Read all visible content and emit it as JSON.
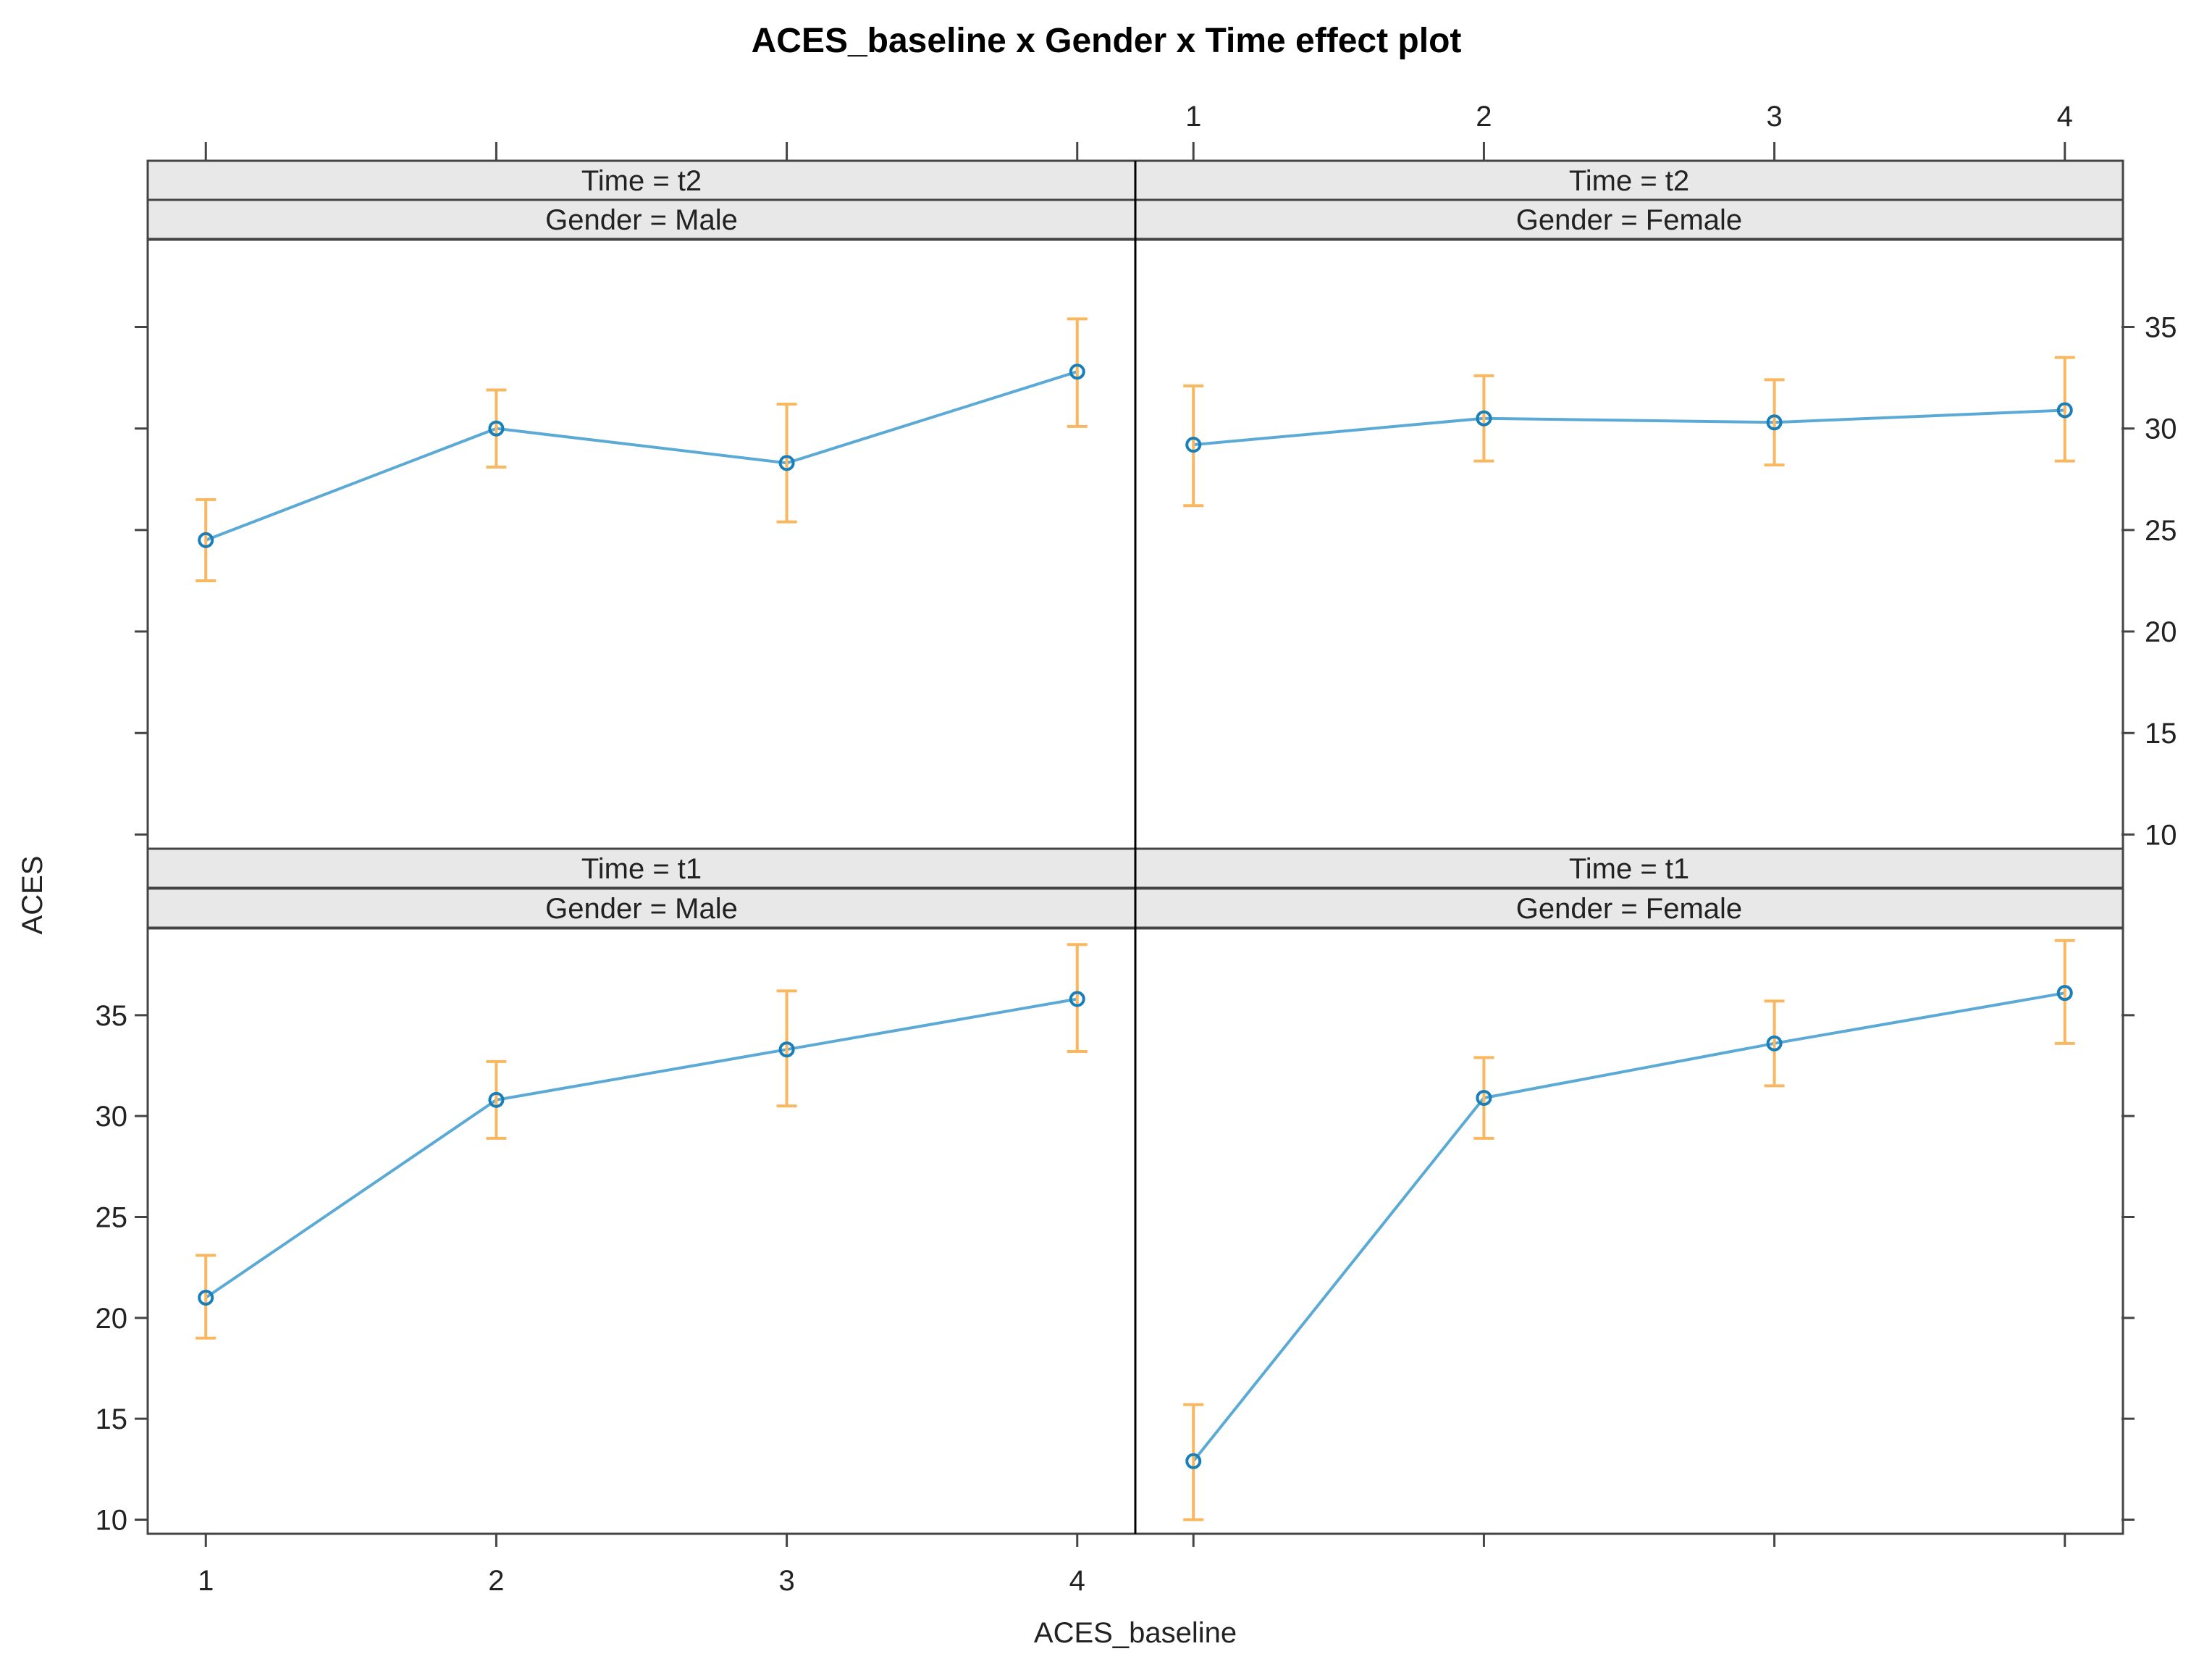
{
  "chart_data": {
    "type": "line",
    "title": "ACES_baseline x Gender x Time effect plot",
    "xlabel": "ACES_baseline",
    "ylabel": "ACES",
    "x_ticks": [
      "1",
      "2",
      "3",
      "4"
    ],
    "y_ticks": [
      "10",
      "15",
      "20",
      "25",
      "30",
      "35"
    ],
    "ylim": [
      9.3,
      39.3
    ],
    "xlim": [
      0.8,
      4.2
    ],
    "colors": {
      "line": "#5BAAD6",
      "point": "#1A7FB8",
      "ci": "#F9B760",
      "strip": "#e8e8e8"
    },
    "panels": [
      {
        "time_label": "Time = t2",
        "gender_label": "Gender = Male",
        "x": [
          1,
          2,
          3,
          4
        ],
        "fit": [
          24.5,
          30.0,
          28.3,
          32.8
        ],
        "lower": [
          22.5,
          28.1,
          25.4,
          30.1
        ],
        "upper": [
          26.5,
          31.9,
          31.2,
          35.4
        ]
      },
      {
        "time_label": "Time = t2",
        "gender_label": "Gender = Female",
        "x": [
          1,
          2,
          3,
          4
        ],
        "fit": [
          29.2,
          30.5,
          30.3,
          30.9
        ],
        "lower": [
          26.2,
          28.4,
          28.2,
          28.4
        ],
        "upper": [
          32.1,
          32.6,
          32.4,
          33.5
        ]
      },
      {
        "time_label": "Time = t1",
        "gender_label": "Gender = Male",
        "x": [
          1,
          2,
          3,
          4
        ],
        "fit": [
          21.0,
          30.8,
          33.3,
          35.8
        ],
        "lower": [
          19.0,
          28.9,
          30.5,
          33.2
        ],
        "upper": [
          23.1,
          32.7,
          36.2,
          38.5
        ]
      },
      {
        "time_label": "Time = t1",
        "gender_label": "Gender = Female",
        "x": [
          1,
          2,
          3,
          4
        ],
        "fit": [
          12.9,
          30.9,
          33.6,
          36.1
        ],
        "lower": [
          10.0,
          28.9,
          31.5,
          33.6
        ],
        "upper": [
          15.7,
          32.9,
          35.7,
          38.7
        ]
      }
    ]
  }
}
